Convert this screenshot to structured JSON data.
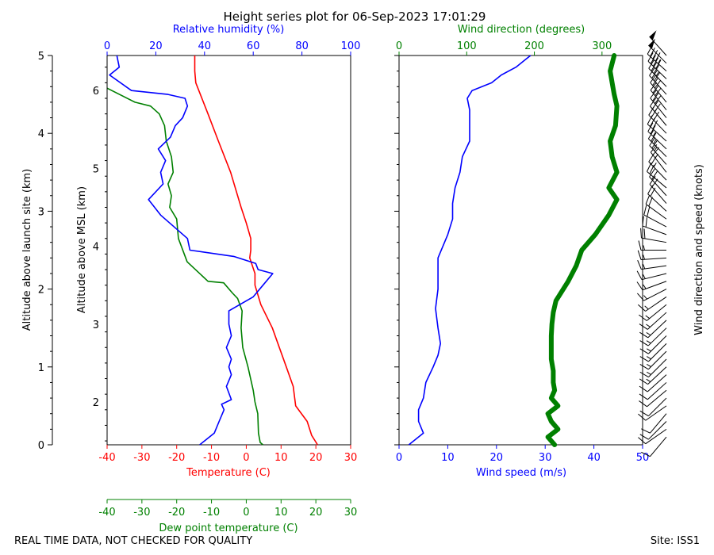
{
  "title": "Height series plot for 06-Sep-2023 17:01:29",
  "footer_left": "REAL TIME DATA, NOT CHECKED FOR QUALITY",
  "footer_right": "Site: ISS1",
  "colors": {
    "temperature": "#ff0000",
    "humidity": "#0000ff",
    "dewpoint": "#008000",
    "axis": "#000000"
  },
  "chart_data": [
    {
      "type": "line",
      "title": "Thermodynamic profile",
      "left_axis_1": {
        "label": "Altitude above launch site (km)",
        "ticks": [
          0,
          1,
          2,
          3,
          4,
          5
        ],
        "range": [
          0,
          5
        ]
      },
      "left_axis_2": {
        "label": "Altitude above MSL (km)",
        "ticks": [
          2,
          3,
          4,
          5,
          6
        ],
        "range": [
          1.45,
          6.45
        ]
      },
      "bottom_axis_temperature": {
        "label": "Temperature (C)",
        "ticks": [
          -40,
          -30,
          -20,
          -10,
          0,
          10,
          20,
          30
        ],
        "range": [
          -40,
          30
        ]
      },
      "bottom_axis_dewpoint": {
        "label": "Dew point temperature (C)",
        "ticks": [
          -40,
          -30,
          -20,
          -10,
          0,
          10,
          20,
          30
        ],
        "range": [
          -40,
          30
        ]
      },
      "top_axis_humidity": {
        "label": "Relative humidity (%)",
        "ticks": [
          0,
          20,
          40,
          60,
          80,
          100
        ],
        "range": [
          0,
          100
        ]
      },
      "series": [
        {
          "name": "Temperature",
          "unit": "C",
          "points": [
            [
              20.5,
              0
            ],
            [
              18.8,
              0.12
            ],
            [
              17.5,
              0.3
            ],
            [
              14.2,
              0.5
            ],
            [
              13.5,
              0.75
            ],
            [
              11.5,
              1.0
            ],
            [
              9.5,
              1.25
            ],
            [
              7.5,
              1.5
            ],
            [
              4.2,
              1.8
            ],
            [
              2.5,
              2.05
            ],
            [
              2.5,
              2.2
            ],
            [
              1.0,
              2.4
            ],
            [
              1.3,
              2.5
            ],
            [
              1.3,
              2.65
            ],
            [
              0.0,
              2.85
            ],
            [
              -1.5,
              3.05
            ],
            [
              -4.5,
              3.5
            ],
            [
              -8.0,
              3.9
            ],
            [
              -11.0,
              4.25
            ],
            [
              -14.5,
              4.65
            ],
            [
              -14.8,
              4.8
            ],
            [
              -14.8,
              5.0
            ]
          ]
        },
        {
          "name": "Dew point temperature",
          "unit": "C",
          "points": [
            [
              4.8,
              0
            ],
            [
              4.0,
              0.03
            ],
            [
              3.5,
              0.15
            ],
            [
              3.3,
              0.4
            ],
            [
              2.5,
              0.55
            ],
            [
              2.0,
              0.7
            ],
            [
              0.5,
              1.0
            ],
            [
              -1.0,
              1.25
            ],
            [
              -1.5,
              1.5
            ],
            [
              -1.2,
              1.72
            ],
            [
              -2.5,
              1.88
            ],
            [
              -4.0,
              1.95
            ],
            [
              -6.5,
              2.08
            ],
            [
              -11.0,
              2.1
            ],
            [
              -17.0,
              2.35
            ],
            [
              -19.5,
              2.65
            ],
            [
              -20.0,
              2.9
            ],
            [
              -22.0,
              3.05
            ],
            [
              -21.5,
              3.2
            ],
            [
              -22.5,
              3.35
            ],
            [
              -21.0,
              3.5
            ],
            [
              -21.5,
              3.7
            ],
            [
              -23.0,
              3.9
            ],
            [
              -23.5,
              4.1
            ],
            [
              -25.0,
              4.25
            ],
            [
              -27.5,
              4.35
            ],
            [
              -32.0,
              4.4
            ],
            [
              -40.0,
              4.58
            ]
          ]
        },
        {
          "name": "Relative humidity",
          "unit": "%",
          "points": [
            [
              38,
              0
            ],
            [
              40,
              0.05
            ],
            [
              44,
              0.15
            ],
            [
              46,
              0.3
            ],
            [
              48,
              0.45
            ],
            [
              47,
              0.52
            ],
            [
              51,
              0.58
            ],
            [
              49,
              0.75
            ],
            [
              51,
              0.9
            ],
            [
              50,
              1.0
            ],
            [
              51,
              1.1
            ],
            [
              49,
              1.25
            ],
            [
              51,
              1.4
            ],
            [
              50,
              1.55
            ],
            [
              50,
              1.72
            ],
            [
              60,
              1.9
            ],
            [
              64,
              2.05
            ],
            [
              68,
              2.2
            ],
            [
              62,
              2.25
            ],
            [
              61,
              2.33
            ],
            [
              52,
              2.42
            ],
            [
              34,
              2.5
            ],
            [
              33,
              2.65
            ],
            [
              22,
              2.95
            ],
            [
              17,
              3.15
            ],
            [
              23,
              3.35
            ],
            [
              22,
              3.5
            ],
            [
              24,
              3.65
            ],
            [
              21,
              3.8
            ],
            [
              26,
              3.95
            ],
            [
              28,
              4.1
            ],
            [
              31,
              4.2
            ],
            [
              33,
              4.35
            ],
            [
              32,
              4.45
            ],
            [
              25,
              4.5
            ],
            [
              10,
              4.55
            ],
            [
              1,
              4.75
            ],
            [
              5,
              4.85
            ],
            [
              4,
              5.0
            ]
          ]
        }
      ]
    },
    {
      "type": "line",
      "title": "Wind profile",
      "bottom_axis_speed": {
        "label": "Wind speed (m/s)",
        "ticks": [
          0,
          10,
          20,
          30,
          40,
          50
        ],
        "range": [
          0,
          50
        ]
      },
      "top_axis_direction": {
        "label": "Wind direction (degrees)",
        "ticks": [
          0,
          100,
          200,
          300
        ],
        "range": [
          0,
          360
        ]
      },
      "barb_label": "Wind direction and speed (knots)",
      "series": [
        {
          "name": "Wind speed",
          "unit": "m/s",
          "points": [
            [
              2,
              0
            ],
            [
              5,
              0.15
            ],
            [
              4,
              0.3
            ],
            [
              4,
              0.45
            ],
            [
              5,
              0.6
            ],
            [
              5.5,
              0.8
            ],
            [
              7,
              1.0
            ],
            [
              8,
              1.15
            ],
            [
              8.5,
              1.3
            ],
            [
              8,
              1.5
            ],
            [
              7.5,
              1.75
            ],
            [
              8,
              2.0
            ],
            [
              8,
              2.2
            ],
            [
              8,
              2.4
            ],
            [
              10,
              2.7
            ],
            [
              11,
              2.9
            ],
            [
              11,
              3.1
            ],
            [
              11.5,
              3.3
            ],
            [
              12.5,
              3.5
            ],
            [
              13,
              3.7
            ],
            [
              14.5,
              3.9
            ],
            [
              14.5,
              4.1
            ],
            [
              14.5,
              4.3
            ],
            [
              14,
              4.45
            ],
            [
              15,
              4.55
            ],
            [
              19,
              4.65
            ],
            [
              21,
              4.75
            ],
            [
              24,
              4.85
            ],
            [
              26,
              4.95
            ],
            [
              27,
              5.0
            ]
          ]
        },
        {
          "name": "Wind direction",
          "unit": "degrees",
          "points": [
            [
              230,
              0
            ],
            [
              220,
              0.1
            ],
            [
              235,
              0.2
            ],
            [
              225,
              0.3
            ],
            [
              220,
              0.4
            ],
            [
              235,
              0.5
            ],
            [
              225,
              0.6
            ],
            [
              230,
              0.7
            ],
            [
              228,
              0.8
            ],
            [
              228,
              0.95
            ],
            [
              225,
              1.1
            ],
            [
              225,
              1.25
            ],
            [
              225,
              1.4
            ],
            [
              226,
              1.55
            ],
            [
              228,
              1.7
            ],
            [
              232,
              1.85
            ],
            [
              250,
              2.1
            ],
            [
              262,
              2.3
            ],
            [
              270,
              2.5
            ],
            [
              290,
              2.7
            ],
            [
              310,
              2.95
            ],
            [
              322,
              3.15
            ],
            [
              310,
              3.3
            ],
            [
              322,
              3.5
            ],
            [
              315,
              3.7
            ],
            [
              312,
              3.9
            ],
            [
              320,
              4.1
            ],
            [
              322,
              4.35
            ],
            [
              318,
              4.5
            ],
            [
              315,
              4.65
            ],
            [
              312,
              4.8
            ],
            [
              318,
              5.0
            ]
          ]
        }
      ]
    }
  ]
}
